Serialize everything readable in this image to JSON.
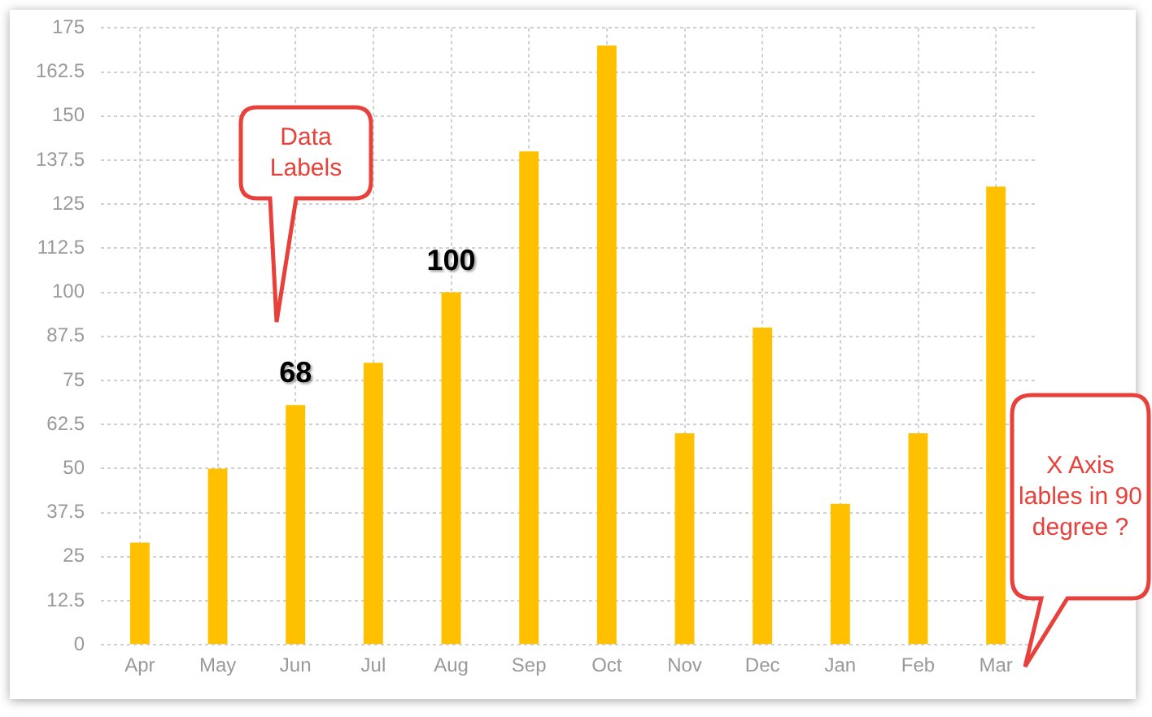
{
  "chart_data": {
    "type": "bar",
    "categories": [
      "Apr",
      "May",
      "Jun",
      "Jul",
      "Aug",
      "Sep",
      "Oct",
      "Nov",
      "Dec",
      "Jan",
      "Feb",
      "Mar"
    ],
    "values": [
      29,
      50,
      68,
      80,
      100,
      140,
      170,
      60,
      90,
      40,
      60,
      130
    ],
    "value_labels": [
      null,
      null,
      "68",
      null,
      "100",
      null,
      null,
      null,
      null,
      null,
      null,
      null
    ],
    "color": "#ffc000",
    "ylim": [
      0,
      175
    ],
    "yticks": [
      0,
      12.5,
      25,
      37.5,
      50,
      62.5,
      75,
      87.5,
      100,
      112.5,
      125,
      137.5,
      150,
      162.5,
      175
    ],
    "grid": true,
    "annotations": [
      "Data Labels",
      "X Axis lables in 90 degree ?"
    ]
  }
}
